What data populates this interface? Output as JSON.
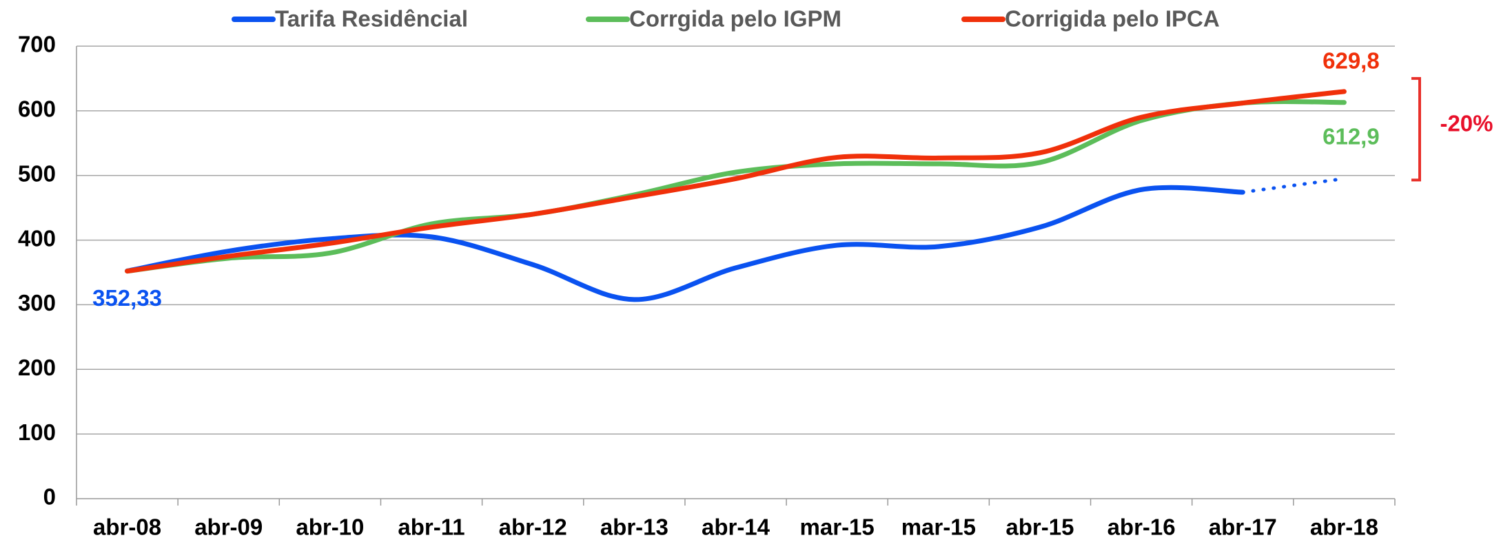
{
  "chart_data": {
    "type": "line",
    "categories": [
      "abr-08",
      "abr-09",
      "abr-10",
      "abr-11",
      "abr-12",
      "abr-13",
      "abr-14",
      "mar-15",
      "mar-15",
      "abr-15",
      "abr-16",
      "abr-17",
      "abr-18"
    ],
    "series": [
      {
        "name": "Tarifa Residêncial",
        "color": "#0a52f0",
        "dotted_last_segment": true,
        "values": [
          352.33,
          383,
          402,
          405,
          362,
          308,
          357,
          392,
          390,
          420,
          478,
          474,
          495
        ],
        "value_labels": [
          "352,33",
          null,
          null,
          null,
          null,
          null,
          null,
          null,
          null,
          null,
          null,
          null,
          null
        ]
      },
      {
        "name": "Corrgida pelo IGPM",
        "color": "#5cbd5a",
        "values": [
          352,
          372,
          380,
          425,
          440,
          470,
          505,
          518,
          518,
          520,
          585,
          612,
          612.9
        ],
        "value_labels": [
          null,
          null,
          null,
          null,
          null,
          null,
          null,
          null,
          null,
          null,
          null,
          null,
          "612,9"
        ]
      },
      {
        "name": "Corrigida pelo IPCA",
        "color": "#f0300a",
        "values": [
          352,
          375,
          395,
          420,
          440,
          467,
          495,
          528,
          527,
          535,
          590,
          612,
          629.8
        ],
        "value_labels": [
          null,
          null,
          null,
          null,
          null,
          null,
          null,
          null,
          null,
          null,
          null,
          null,
          "629,8"
        ]
      }
    ],
    "ylim": [
      0,
      700
    ],
    "yticks": [
      0,
      100,
      200,
      300,
      400,
      500,
      600,
      700
    ],
    "grid": true,
    "legend": "top",
    "annotations": [
      "-20%"
    ]
  }
}
